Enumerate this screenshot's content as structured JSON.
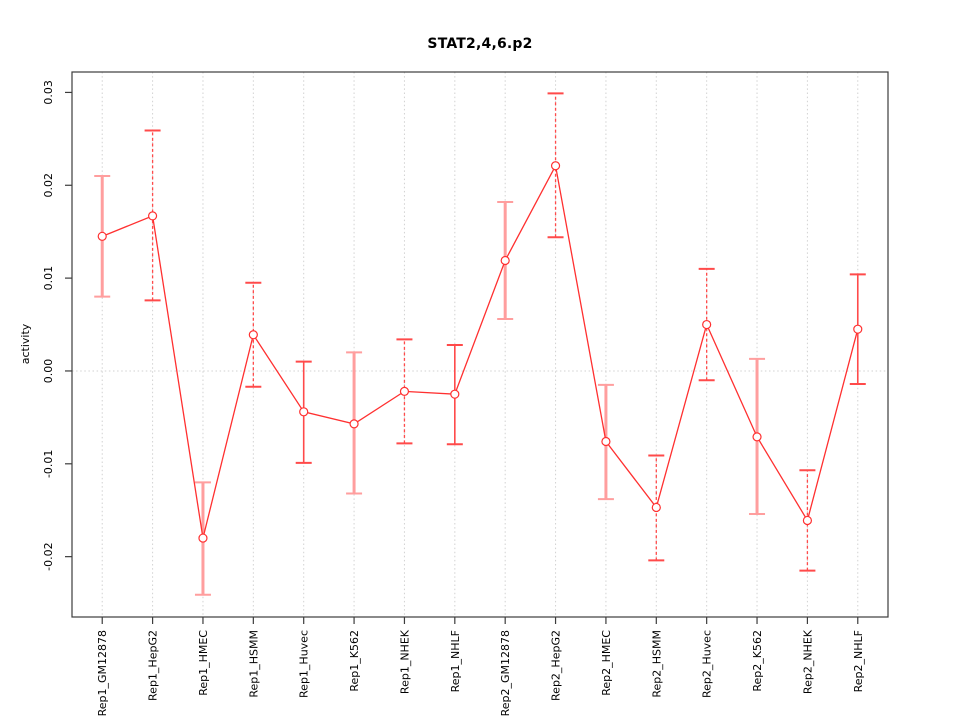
{
  "window": {
    "background": "#ffffff"
  },
  "chart_data": {
    "type": "line",
    "title": "STAT2,4,6.p2",
    "ylabel": "activity",
    "xlabel": "",
    "legend": "none",
    "grid": {
      "vertical_dotted_per_category": true,
      "horizontal_dotted_at_zero": true
    },
    "categories": [
      "Rep1_GM12878",
      "Rep1_HepG2",
      "Rep1_HMEC",
      "Rep1_HSMM",
      "Rep1_Huvec",
      "Rep1_K562",
      "Rep1_NHEK",
      "Rep1_NHLF",
      "Rep2_GM12878",
      "Rep2_HepG2",
      "Rep2_HMEC",
      "Rep2_HSMM",
      "Rep2_Huvec",
      "Rep2_K562",
      "Rep2_NHEK",
      "Rep2_NHLF"
    ],
    "yticks": [
      0.03,
      0.02,
      0.01,
      0,
      -0.01,
      -0.02
    ],
    "ytick_labels": [
      "0.03",
      "0.02",
      "0.01",
      "0.00",
      "-0.01",
      "-0.02"
    ],
    "ylim": [
      -0.0265,
      0.0322
    ],
    "series": [
      {
        "name": "activity",
        "values": [
          0.0145,
          0.0167,
          -0.018,
          0.0039,
          -0.0044,
          -0.0057,
          -0.0022,
          -0.0025,
          0.0119,
          0.0221,
          -0.0076,
          -0.0147,
          0.005,
          -0.0071,
          -0.0161,
          0.0045
        ],
        "error_low": [
          0.008,
          0.0076,
          -0.0241,
          -0.0017,
          -0.0099,
          -0.0132,
          -0.0078,
          -0.0079,
          0.0056,
          0.0144,
          -0.0138,
          -0.0204,
          -0.001,
          -0.0154,
          -0.0215,
          -0.0014
        ],
        "error_high": [
          0.021,
          0.0259,
          -0.012,
          0.0095,
          0.001,
          0.002,
          0.0034,
          0.0028,
          0.0182,
          0.0299,
          -0.0015,
          -0.0091,
          0.011,
          0.0013,
          -0.0107,
          0.0104
        ],
        "error_bar_styles": [
          "pink",
          "dashed",
          "pink",
          "dashed",
          "solid",
          "pink",
          "dashed",
          "solid",
          "pink",
          "dashed",
          "pink",
          "dashed",
          "dashed",
          "pink",
          "dashed",
          "solid"
        ]
      }
    ],
    "colors": {
      "line": "#ff3030",
      "point_fill": "#ffffff",
      "error_pink": "#ff9e9e",
      "error_red": "#ff4a4a",
      "grid": "#d2d2d2",
      "axis": "#3c3c3c",
      "text": "#000000"
    }
  }
}
